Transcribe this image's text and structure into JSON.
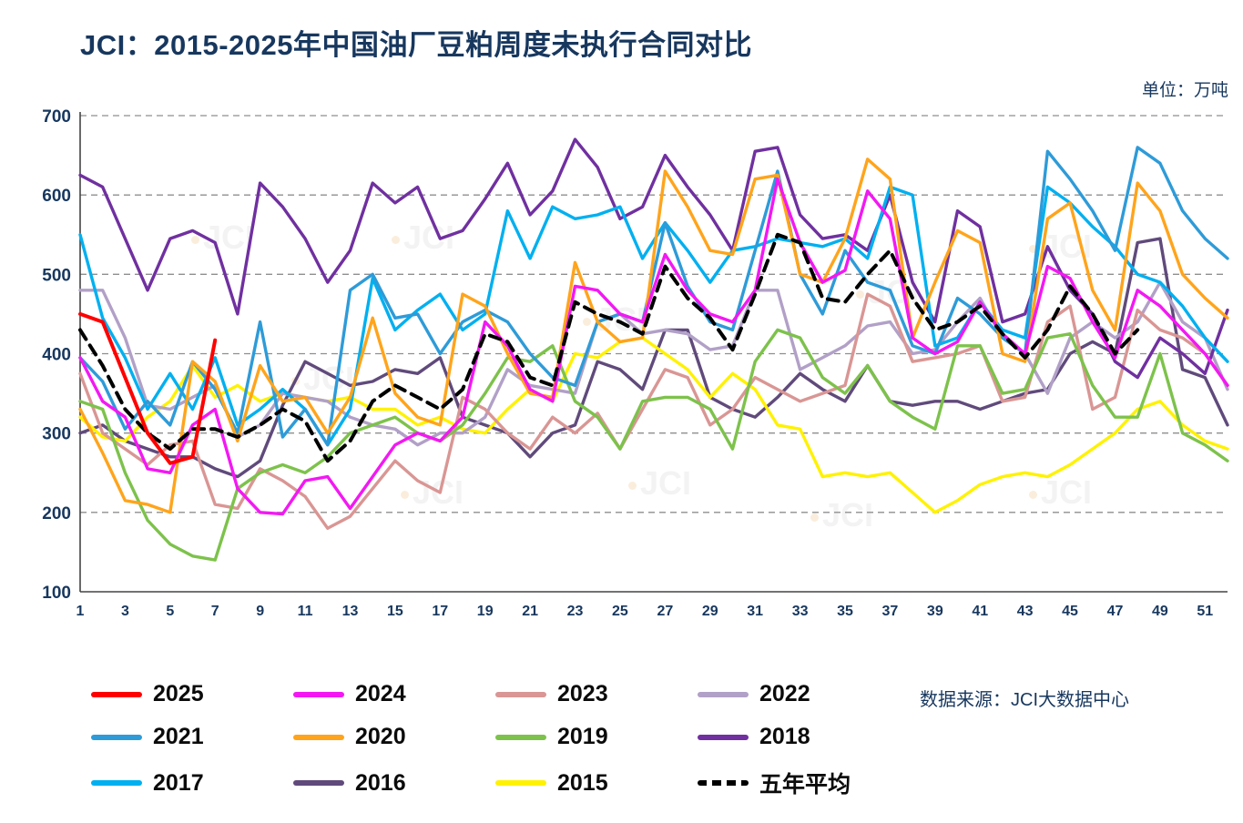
{
  "title": "JCI：2015-2025年中国油厂豆粕周度未执行合同对比",
  "unit_label": "单位：万吨",
  "source_label": "数据来源：JCI大数据中心",
  "watermark": "JCI",
  "chart_data": {
    "type": "line",
    "x": [
      1,
      2,
      3,
      4,
      5,
      6,
      7,
      8,
      9,
      10,
      11,
      12,
      13,
      14,
      15,
      16,
      17,
      18,
      19,
      20,
      21,
      22,
      23,
      24,
      25,
      26,
      27,
      28,
      29,
      30,
      31,
      32,
      33,
      34,
      35,
      36,
      37,
      38,
      39,
      40,
      41,
      42,
      43,
      44,
      45,
      46,
      47,
      48,
      49,
      50,
      51,
      52
    ],
    "x_ticks": [
      1,
      3,
      5,
      7,
      9,
      11,
      13,
      15,
      17,
      19,
      21,
      23,
      25,
      27,
      29,
      31,
      33,
      35,
      37,
      39,
      41,
      43,
      45,
      47,
      49,
      51
    ],
    "xlabel": "",
    "ylabel": "",
    "ylim": [
      100,
      700
    ],
    "y_ticks": [
      100,
      200,
      300,
      400,
      500,
      600,
      700
    ],
    "grid": true,
    "legend_position": "bottom",
    "draw_order": [
      9,
      10,
      3,
      2,
      6,
      7,
      8,
      4,
      5,
      1,
      11,
      0
    ],
    "series": [
      {
        "key": "2025",
        "name": "2025",
        "color": "#FF0000",
        "width": 4,
        "values": [
          450,
          440,
          370,
          300,
          262,
          270,
          417,
          null,
          null,
          null,
          null,
          null,
          null,
          null,
          null,
          null,
          null,
          null,
          null,
          null,
          null,
          null,
          null,
          null,
          null,
          null,
          null,
          null,
          null,
          null,
          null,
          null,
          null,
          null,
          null,
          null,
          null,
          null,
          null,
          null,
          null,
          null,
          null,
          null,
          null,
          null,
          null,
          null,
          null,
          null,
          null,
          null
        ]
      },
      {
        "key": "2024",
        "name": "2024",
        "color": "#F318F3",
        "values": [
          395,
          340,
          320,
          255,
          250,
          310,
          330,
          230,
          200,
          198,
          240,
          245,
          205,
          245,
          285,
          300,
          290,
          320,
          440,
          410,
          355,
          340,
          485,
          480,
          450,
          440,
          525,
          480,
          450,
          440,
          480,
          620,
          540,
          490,
          505,
          605,
          570,
          420,
          400,
          415,
          465,
          425,
          400,
          510,
          495,
          440,
          395,
          480,
          460,
          430,
          400,
          360
        ]
      },
      {
        "key": "2023",
        "name": "2023",
        "color": "#D99694",
        "values": [
          375,
          300,
          280,
          260,
          285,
          290,
          210,
          205,
          255,
          240,
          220,
          180,
          195,
          230,
          265,
          240,
          225,
          345,
          330,
          300,
          280,
          320,
          300,
          325,
          280,
          330,
          380,
          370,
          310,
          330,
          370,
          355,
          340,
          350,
          360,
          475,
          460,
          390,
          395,
          400,
          410,
          340,
          345,
          440,
          460,
          330,
          345,
          455,
          430,
          420,
          400,
          360
        ]
      },
      {
        "key": "2022",
        "name": "2022",
        "color": "#B1A0C7",
        "values": [
          480,
          480,
          420,
          335,
          330,
          345,
          360,
          295,
          310,
          350,
          345,
          340,
          320,
          310,
          305,
          285,
          300,
          300,
          320,
          380,
          360,
          355,
          350,
          440,
          450,
          425,
          430,
          425,
          405,
          410,
          480,
          480,
          380,
          395,
          410,
          435,
          440,
          400,
          405,
          440,
          470,
          420,
          400,
          350,
          420,
          440,
          420,
          440,
          490,
          440,
          420,
          355
        ]
      },
      {
        "key": "2021",
        "name": "2021",
        "color": "#2E9BD8",
        "values": [
          395,
          365,
          305,
          340,
          310,
          390,
          355,
          300,
          440,
          295,
          330,
          285,
          480,
          500,
          445,
          450,
          400,
          440,
          455,
          440,
          400,
          370,
          360,
          440,
          450,
          440,
          565,
          485,
          440,
          430,
          530,
          630,
          500,
          450,
          530,
          490,
          480,
          410,
          400,
          470,
          450,
          420,
          400,
          655,
          620,
          580,
          530,
          660,
          640,
          580,
          545,
          520
        ]
      },
      {
        "key": "2020",
        "name": "2020",
        "color": "#FFA41B",
        "values": [
          330,
          275,
          215,
          210,
          200,
          390,
          365,
          290,
          385,
          340,
          345,
          300,
          345,
          445,
          350,
          320,
          310,
          475,
          460,
          400,
          350,
          345,
          515,
          440,
          415,
          420,
          630,
          585,
          530,
          525,
          620,
          625,
          500,
          490,
          545,
          645,
          620,
          420,
          490,
          555,
          540,
          400,
          390,
          570,
          590,
          480,
          430,
          615,
          580,
          500,
          470,
          445
        ]
      },
      {
        "key": "2019",
        "name": "2019",
        "color": "#7DC24B",
        "values": [
          340,
          330,
          250,
          190,
          160,
          145,
          140,
          230,
          250,
          260,
          250,
          270,
          300,
          310,
          320,
          300,
          290,
          310,
          350,
          395,
          390,
          410,
          340,
          320,
          280,
          340,
          345,
          345,
          330,
          280,
          390,
          430,
          420,
          370,
          350,
          385,
          340,
          320,
          305,
          410,
          410,
          350,
          355,
          420,
          425,
          360,
          320,
          320,
          400,
          300,
          285,
          265
        ]
      },
      {
        "key": "2018",
        "name": "2018",
        "color": "#7030A0",
        "values": [
          625,
          610,
          545,
          480,
          545,
          555,
          540,
          450,
          615,
          585,
          545,
          490,
          530,
          615,
          590,
          610,
          545,
          555,
          595,
          640,
          575,
          605,
          670,
          635,
          570,
          585,
          650,
          610,
          575,
          530,
          655,
          660,
          575,
          545,
          550,
          530,
          600,
          490,
          440,
          580,
          560,
          440,
          450,
          535,
          480,
          450,
          390,
          370,
          420,
          400,
          375,
          455
        ]
      },
      {
        "key": "2017",
        "name": "2017",
        "color": "#00B0F0",
        "values": [
          550,
          445,
          395,
          330,
          375,
          330,
          395,
          310,
          330,
          355,
          330,
          285,
          330,
          495,
          430,
          455,
          475,
          430,
          450,
          580,
          520,
          585,
          570,
          575,
          585,
          520,
          565,
          530,
          490,
          530,
          535,
          545,
          540,
          535,
          545,
          520,
          610,
          600,
          410,
          420,
          465,
          430,
          420,
          610,
          590,
          560,
          535,
          500,
          490,
          460,
          420,
          390
        ]
      },
      {
        "key": "2016",
        "name": "2016",
        "color": "#604A7B",
        "values": [
          300,
          310,
          290,
          280,
          270,
          270,
          255,
          245,
          265,
          335,
          390,
          375,
          360,
          365,
          380,
          375,
          395,
          320,
          310,
          300,
          270,
          300,
          310,
          390,
          380,
          355,
          430,
          430,
          345,
          330,
          320,
          345,
          375,
          355,
          340,
          385,
          340,
          335,
          340,
          340,
          330,
          340,
          350,
          355,
          400,
          415,
          400,
          540,
          545,
          380,
          370,
          310
        ]
      },
      {
        "key": "2015",
        "name": "2015",
        "color": "#FFF200",
        "values": [
          320,
          295,
          290,
          320,
          340,
          385,
          345,
          360,
          340,
          350,
          345,
          340,
          345,
          330,
          330,
          310,
          320,
          305,
          300,
          330,
          355,
          340,
          400,
          395,
          415,
          420,
          400,
          380,
          345,
          375,
          355,
          310,
          305,
          245,
          250,
          245,
          250,
          225,
          200,
          215,
          235,
          245,
          250,
          245,
          260,
          280,
          300,
          330,
          340,
          310,
          290,
          280
        ]
      },
      {
        "key": "avg5",
        "name": "五年平均",
        "color": "#000000",
        "dash": true,
        "width": 4,
        "values": [
          430,
          385,
          330,
          300,
          280,
          305,
          305,
          295,
          310,
          330,
          315,
          265,
          290,
          340,
          360,
          345,
          330,
          355,
          425,
          415,
          370,
          360,
          465,
          450,
          440,
          425,
          510,
          470,
          445,
          405,
          475,
          550,
          540,
          470,
          465,
          500,
          530,
          470,
          430,
          440,
          460,
          425,
          395,
          430,
          485,
          450,
          400,
          430,
          null,
          null,
          null,
          null
        ]
      }
    ]
  }
}
